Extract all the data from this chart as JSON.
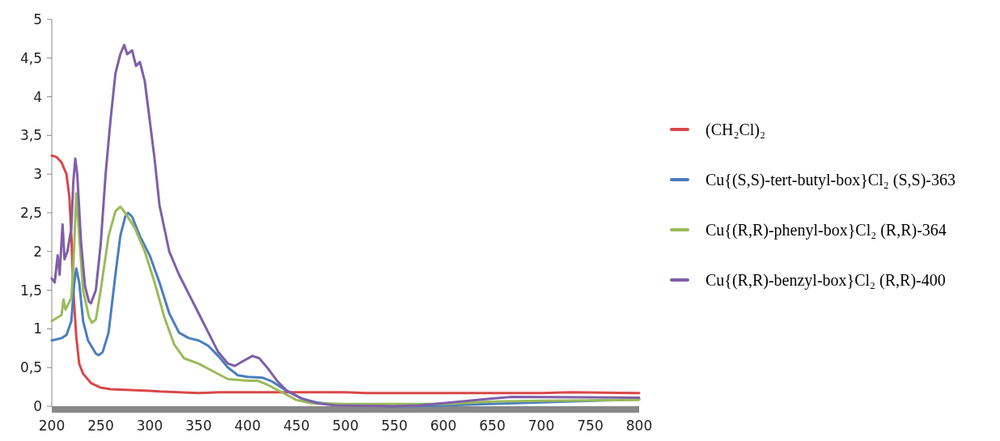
{
  "chart_data": {
    "type": "line",
    "xlim": [
      200,
      800
    ],
    "xticks": [
      200,
      250,
      300,
      350,
      400,
      450,
      500,
      550,
      600,
      650,
      700,
      750,
      800
    ],
    "ylim": [
      0,
      5
    ],
    "yticks": [
      0,
      {
        "value": 0.5,
        "label": "0,5"
      },
      1,
      {
        "value": 1.5,
        "label": "1,5"
      },
      2,
      {
        "value": 2.5,
        "label": "2,5"
      },
      3,
      {
        "value": 3.5,
        "label": "3,5"
      },
      4,
      {
        "value": 4.5,
        "label": "4,5"
      },
      5
    ],
    "grid": false,
    "legend": "right",
    "marker": "none",
    "line_style": "solid",
    "series": [
      {
        "name": "(CH₂Cl)₂",
        "color": "#d9484a",
        "x": [
          200,
          205,
          210,
          215,
          218,
          220,
          222,
          225,
          228,
          232,
          240,
          250,
          260,
          300,
          310,
          350,
          370,
          400,
          500,
          520,
          600,
          700,
          730,
          800
        ],
        "values": [
          3.24,
          3.22,
          3.15,
          3.0,
          2.7,
          2.2,
          1.5,
          0.9,
          0.55,
          0.42,
          0.3,
          0.24,
          0.22,
          0.2,
          0.19,
          0.17,
          0.18,
          0.18,
          0.18,
          0.17,
          0.17,
          0.17,
          0.18,
          0.17
        ]
      },
      {
        "name": "Cu{(S,S)-tert-butyl-box}Cl₂ (S,S)-363",
        "color": "#4a7ebf",
        "x": [
          200,
          210,
          215,
          220,
          223,
          225,
          228,
          232,
          237,
          245,
          248,
          252,
          258,
          265,
          270,
          275,
          278,
          282,
          290,
          300,
          310,
          320,
          330,
          340,
          350,
          360,
          370,
          380,
          390,
          400,
          415,
          425,
          440,
          455,
          470,
          490,
          550,
          600,
          700,
          800
        ],
        "values": [
          0.85,
          0.88,
          0.92,
          1.1,
          1.6,
          1.78,
          1.6,
          1.1,
          0.85,
          0.68,
          0.66,
          0.7,
          0.95,
          1.7,
          2.2,
          2.45,
          2.5,
          2.45,
          2.2,
          1.95,
          1.6,
          1.2,
          0.95,
          0.88,
          0.85,
          0.78,
          0.65,
          0.5,
          0.4,
          0.38,
          0.37,
          0.32,
          0.2,
          0.1,
          0.05,
          0.02,
          0.0,
          0.01,
          0.05,
          0.09
        ]
      },
      {
        "name": "Cu{(R,R)-phenyl-box}Cl₂ (R,R)-364",
        "color": "#9bbb59",
        "x": [
          200,
          210,
          212,
          214,
          220,
          222,
          225,
          228,
          232,
          238,
          241,
          245,
          250,
          258,
          265,
          270,
          275,
          285,
          295,
          305,
          315,
          325,
          335,
          350,
          365,
          380,
          400,
          410,
          420,
          435,
          450,
          465,
          500,
          550,
          600,
          650,
          700,
          800
        ],
        "values": [
          1.1,
          1.18,
          1.38,
          1.25,
          1.4,
          1.8,
          2.75,
          2.2,
          1.5,
          1.15,
          1.08,
          1.12,
          1.5,
          2.2,
          2.52,
          2.58,
          2.5,
          2.3,
          2.0,
          1.6,
          1.15,
          0.8,
          0.62,
          0.55,
          0.45,
          0.35,
          0.33,
          0.33,
          0.28,
          0.18,
          0.08,
          0.04,
          0.03,
          0.03,
          0.03,
          0.06,
          0.07,
          0.08
        ]
      },
      {
        "name": "Cu{(R,R)-benzyl-box}Cl₂ (R,R)-400",
        "color": "#7f5fa8",
        "x": [
          200,
          203,
          206,
          208,
          211,
          213,
          216,
          220,
          222,
          224,
          226,
          230,
          234,
          238,
          240,
          245,
          250,
          255,
          260,
          265,
          270,
          274,
          277,
          282,
          286,
          290,
          295,
          300,
          305,
          310,
          320,
          330,
          340,
          350,
          360,
          370,
          380,
          387,
          395,
          405,
          412,
          420,
          430,
          440,
          455,
          470,
          490,
          550,
          575,
          600,
          650,
          670,
          800
        ],
        "values": [
          1.65,
          1.6,
          1.95,
          1.7,
          2.35,
          1.9,
          2.0,
          2.3,
          2.9,
          3.2,
          3.0,
          2.1,
          1.55,
          1.35,
          1.33,
          1.5,
          2.1,
          3.0,
          3.7,
          4.3,
          4.55,
          4.67,
          4.55,
          4.6,
          4.4,
          4.45,
          4.2,
          3.7,
          3.2,
          2.6,
          2.0,
          1.7,
          1.45,
          1.2,
          0.95,
          0.7,
          0.55,
          0.52,
          0.58,
          0.65,
          0.62,
          0.5,
          0.33,
          0.2,
          0.1,
          0.04,
          0.01,
          0.0,
          0.01,
          0.04,
          0.1,
          0.12,
          0.11
        ]
      }
    ]
  }
}
